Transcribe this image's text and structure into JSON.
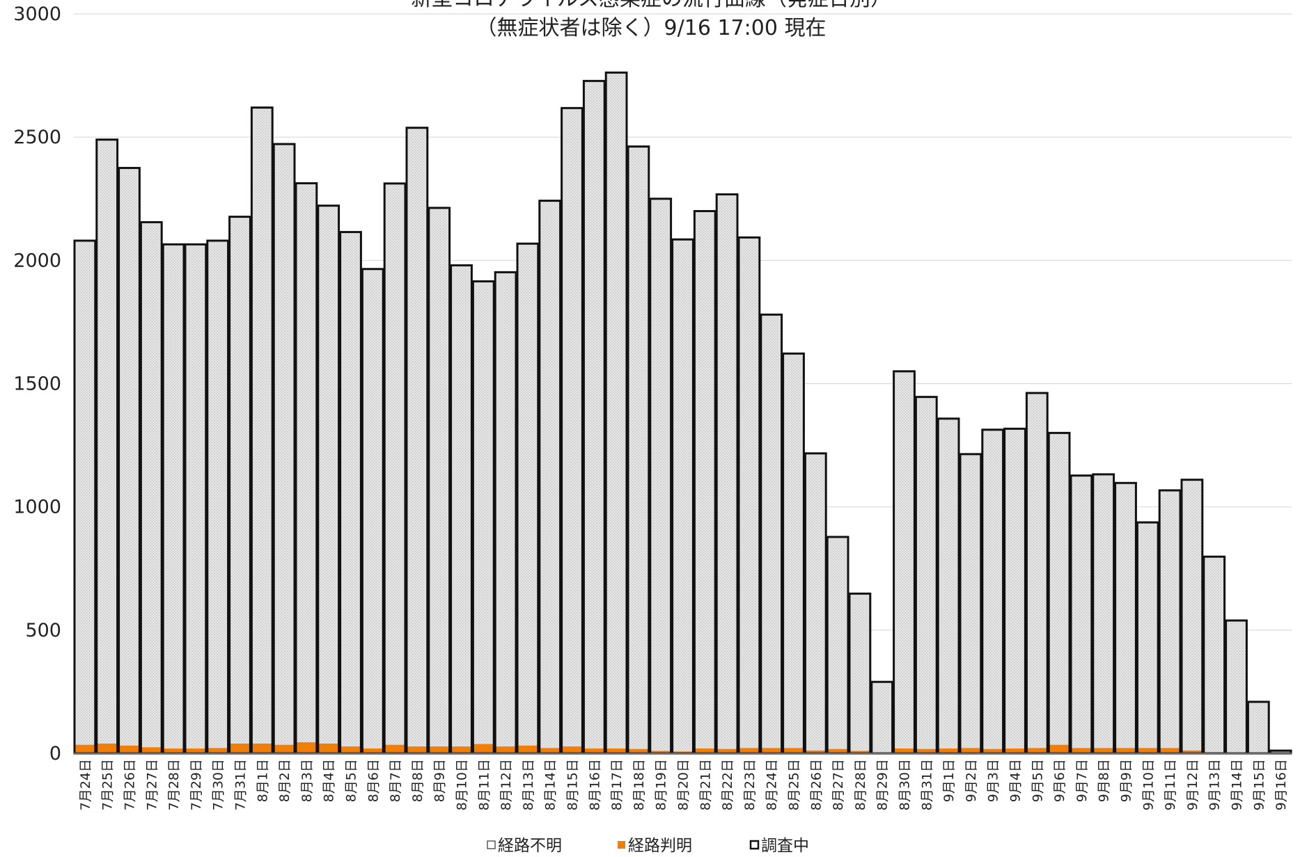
{
  "chart_data": {
    "type": "bar",
    "stacked": true,
    "title": "新型コロナウイルス感染症の流行曲線（発症日別）",
    "subtitle": "（無症状者は除く）9/16 17:00 現在",
    "xlabel": "",
    "ylabel": "",
    "ylim": [
      0,
      3000
    ],
    "yticks": [
      0,
      500,
      1000,
      1500,
      2000,
      2500,
      3000
    ],
    "grid": true,
    "legend_position": "bottom",
    "categories": [
      "7月24日",
      "7月25日",
      "7月26日",
      "7月27日",
      "7月28日",
      "7月29日",
      "7月30日",
      "7月31日",
      "8月1日",
      "8月2日",
      "8月3日",
      "8月4日",
      "8月5日",
      "8月6日",
      "8月7日",
      "8月8日",
      "8月9日",
      "8月10日",
      "8月11日",
      "8月12日",
      "8月13日",
      "8月14日",
      "8月15日",
      "8月16日",
      "8月17日",
      "8月18日",
      "8月19日",
      "8月20日",
      "8月21日",
      "8月22日",
      "8月23日",
      "8月24日",
      "8月25日",
      "8月26日",
      "8月27日",
      "8月28日",
      "8月29日",
      "8月30日",
      "8月31日",
      "9月1日",
      "9月2日",
      "9月3日",
      "9月4日",
      "9月5日",
      "9月6日",
      "9月7日",
      "9月8日",
      "9月9日",
      "9月10日",
      "9月11日",
      "9月12日",
      "9月13日",
      "9月14日",
      "9月15日",
      "9月16日"
    ],
    "series": [
      {
        "name": "経路判明",
        "color": "#f07f09",
        "values": [
          35,
          40,
          32,
          25,
          20,
          20,
          22,
          40,
          40,
          35,
          45,
          40,
          28,
          20,
          35,
          28,
          28,
          28,
          38,
          28,
          32,
          22,
          28,
          20,
          20,
          18,
          10,
          8,
          20,
          18,
          22,
          22,
          22,
          12,
          18,
          10,
          2,
          20,
          18,
          20,
          22,
          18,
          20,
          22,
          35,
          22,
          22,
          22,
          22,
          22,
          12,
          5,
          2,
          1,
          1
        ]
      },
      {
        "name": "経路不明",
        "color": "#e3e3e3",
        "values": [
          2045,
          2450,
          2343,
          2130,
          2045,
          2045,
          2058,
          2137,
          2580,
          2437,
          2268,
          2182,
          2087,
          1945,
          2277,
          2510,
          2185,
          1952,
          1877,
          1924,
          2036,
          2220,
          2590,
          2708,
          2742,
          2444,
          2240,
          2077,
          2180,
          2250,
          2071,
          1758,
          1600,
          1205,
          860,
          638,
          288,
          1530,
          1428,
          1338,
          1192,
          1295,
          1297,
          1440,
          1265,
          1105,
          1110,
          1075,
          915,
          1045,
          1098,
          793,
          537,
          208,
          10
        ]
      },
      {
        "name": "調査中",
        "color": "#ffffff",
        "values": [
          0,
          0,
          0,
          0,
          0,
          0,
          0,
          0,
          0,
          0,
          0,
          0,
          0,
          0,
          0,
          0,
          0,
          0,
          0,
          0,
          0,
          0,
          0,
          0,
          0,
          0,
          0,
          0,
          0,
          0,
          0,
          0,
          0,
          0,
          0,
          0,
          0,
          0,
          0,
          0,
          0,
          0,
          0,
          0,
          0,
          0,
          0,
          0,
          0,
          0,
          0,
          0,
          0,
          0,
          0
        ]
      }
    ]
  }
}
